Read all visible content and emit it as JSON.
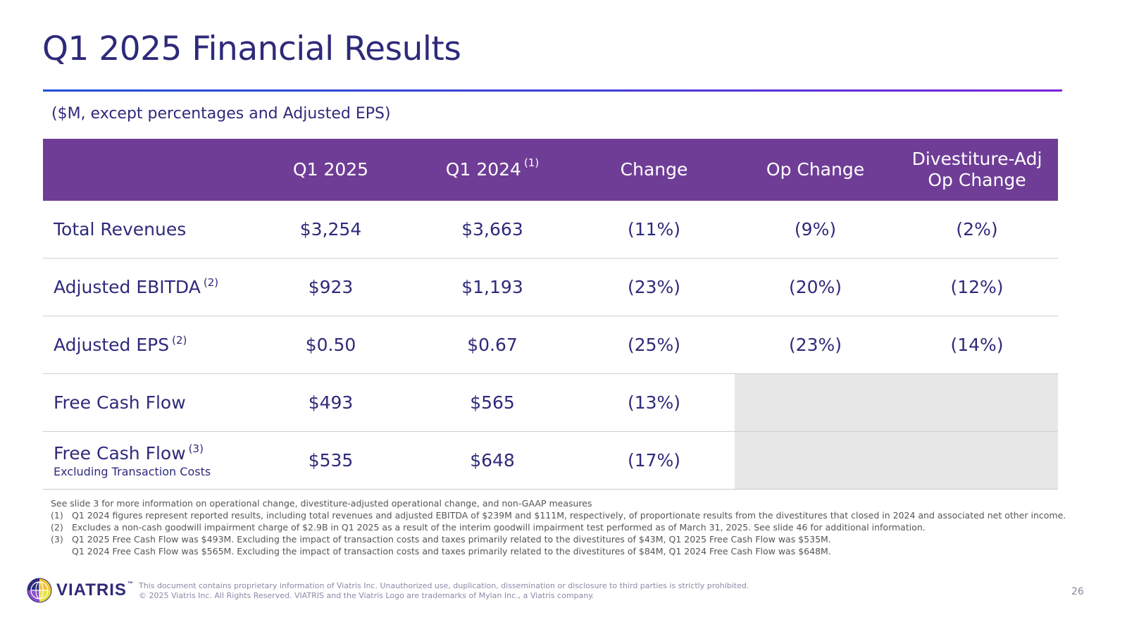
{
  "title": "Q1 2025 Financial Results",
  "subtitle": "($M, except percentages and Adjusted EPS)",
  "table": {
    "headers": [
      "",
      "Q1 2025",
      "Q1 2024",
      "Change",
      "Op Change",
      "Divestiture-Adj Op Change"
    ],
    "header_q1_2024_note": "(1)",
    "header_divadj_line1": "Divestiture-Adj",
    "header_divadj_line2": "Op Change",
    "rows": [
      {
        "label": "Total Revenues",
        "note": "",
        "sublabel": "",
        "values": [
          "$3,254",
          "$3,663",
          "(11%)",
          "(9%)",
          "(2%)"
        ]
      },
      {
        "label": "Adjusted EBITDA",
        "note": "(2)",
        "sublabel": "",
        "values": [
          "$923",
          "$1,193",
          "(23%)",
          "(20%)",
          "(12%)"
        ]
      },
      {
        "label": "Adjusted EPS",
        "note": "(2)",
        "sublabel": "",
        "values": [
          "$0.50",
          "$0.67",
          "(25%)",
          "(23%)",
          "(14%)"
        ]
      },
      {
        "label": "Free Cash Flow",
        "note": "",
        "sublabel": "",
        "values": [
          "$493",
          "$565",
          "(13%)",
          "",
          ""
        ]
      },
      {
        "label": "Free Cash Flow",
        "note": "(3)",
        "sublabel": "Excluding Transaction Costs",
        "values": [
          "$535",
          "$648",
          "(17%)",
          "",
          ""
        ]
      }
    ],
    "shaded_color": "#e7e7e7",
    "header_color": "#6f3d96"
  },
  "notes": {
    "intro": "See slide 3 for more information on operational change, divestiture-adjusted operational change, and non-GAAP measures",
    "items": [
      {
        "num": "(1)",
        "text": "Q1 2024 figures represent reported results, including total revenues and adjusted EBITDA of $239M and $111M, respectively, of proportionate results from the divestitures that closed in 2024 and associated net other income."
      },
      {
        "num": "(2)",
        "text": "Excludes a non-cash goodwill impairment charge of $2.9B in Q1 2025 as a result of the interim goodwill impairment test performed as of March 31, 2025. See slide 46 for additional information."
      },
      {
        "num": "(3)",
        "text": "Q1 2025 Free Cash Flow was $493M. Excluding the impact of transaction costs and taxes primarily related to the divestitures of $43M, Q1 2025 Free Cash Flow was $535M."
      }
    ],
    "continuation": "Q1 2024 Free Cash Flow was $565M. Excluding the impact of transaction costs and taxes primarily related to the divestitures of $84M, Q1 2024 Free Cash Flow was $648M."
  },
  "footer": {
    "logo_text": "VIATRIS",
    "logo_tm": "™",
    "disclaimer_line1": "This document contains proprietary information of Viatris Inc. Unauthorized use, duplication, dissemination or disclosure to third parties is strictly prohibited.",
    "disclaimer_line2": "© 2025 Viatris Inc. All Rights Reserved. VIATRIS and the Viatris Logo are trademarks of Mylan Inc., a Viatris company.",
    "page_number": "26"
  },
  "icons": {
    "logo": "viatris-globe-icon"
  },
  "colors": {
    "title": "#2e2a7a",
    "rule_start": "#1f4fd8",
    "rule_end": "#7a1fe0"
  }
}
